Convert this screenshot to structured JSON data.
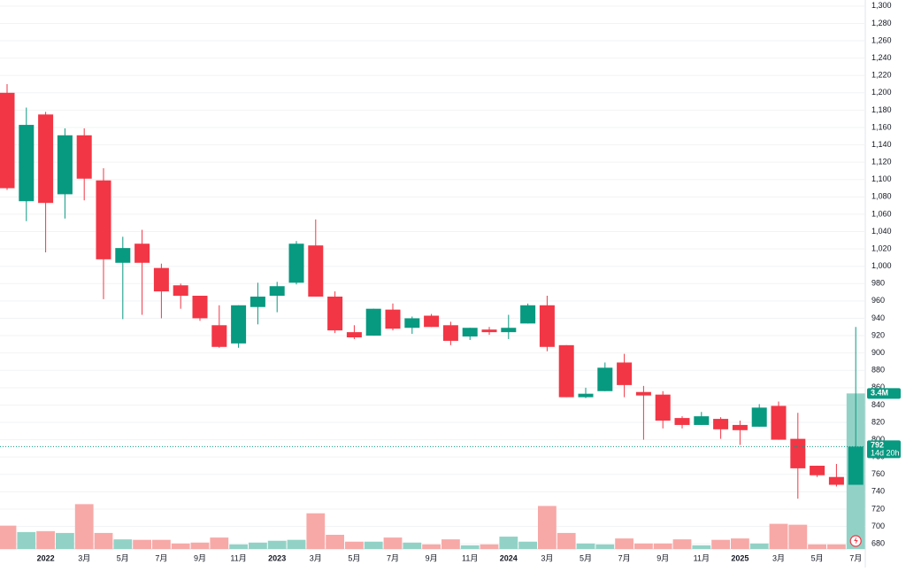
{
  "chart_data": {
    "type": "candlestick",
    "categories": [
      null,
      null,
      "2022",
      null,
      "3月",
      null,
      "5月",
      null,
      "7月",
      null,
      "9月",
      null,
      "11月",
      null,
      "2023",
      null,
      "3月",
      null,
      "5月",
      null,
      "7月",
      null,
      "9月",
      null,
      "11月",
      null,
      "2024",
      null,
      "3月",
      null,
      "5月",
      null,
      "7月",
      null,
      "9月",
      null,
      "11月",
      null,
      "2025",
      null,
      "3月",
      null,
      "5月",
      null,
      "7月"
    ],
    "open": [
      1200,
      1075,
      1175,
      1083,
      1151,
      1099,
      1004,
      1026,
      998,
      978,
      966,
      932,
      911,
      953,
      966,
      981,
      1024,
      965,
      924,
      920,
      950,
      929,
      943,
      932,
      919,
      927,
      924,
      934,
      955,
      909,
      849,
      856,
      889,
      855,
      852,
      825,
      817,
      824,
      817,
      815,
      839,
      801,
      770,
      757,
      748
    ],
    "high": [
      1210,
      1183,
      1178,
      1159,
      1159,
      1113,
      1034,
      1042,
      1003,
      980,
      966,
      955,
      955,
      981,
      982,
      1029,
      1054,
      971,
      932,
      951,
      957,
      942,
      945,
      936,
      929,
      930,
      944,
      957,
      966,
      909,
      860,
      889,
      899,
      862,
      856,
      827,
      832,
      826,
      822,
      841,
      844,
      831,
      770,
      772,
      930
    ],
    "low": [
      1088,
      1052,
      1016,
      1055,
      1076,
      962,
      939,
      944,
      940,
      951,
      937,
      906,
      906,
      933,
      947,
      979,
      965,
      923,
      916,
      920,
      926,
      922,
      930,
      909,
      915,
      921,
      916,
      934,
      902,
      849,
      848,
      856,
      849,
      800,
      813,
      813,
      817,
      801,
      794,
      815,
      800,
      732,
      757,
      746,
      748
    ],
    "close": [
      1090,
      1163,
      1073,
      1151,
      1101,
      1008,
      1021,
      1004,
      971,
      966,
      940,
      907,
      955,
      965,
      977,
      1026,
      965,
      926,
      918,
      951,
      928,
      940,
      930,
      914,
      929,
      924,
      929,
      955,
      907,
      849,
      853,
      883,
      863,
      851,
      822,
      817,
      827,
      812,
      811,
      837,
      800,
      767,
      759,
      748,
      792
    ],
    "volume": [
      0.51,
      0.37,
      0.39,
      0.35,
      0.98,
      0.35,
      0.21,
      0.2,
      0.2,
      0.12,
      0.14,
      0.25,
      0.1,
      0.14,
      0.18,
      0.2,
      0.78,
      0.31,
      0.16,
      0.16,
      0.25,
      0.14,
      0.1,
      0.21,
      0.08,
      0.1,
      0.27,
      0.16,
      0.94,
      0.35,
      0.12,
      0.1,
      0.23,
      0.12,
      0.12,
      0.21,
      0.08,
      0.2,
      0.23,
      0.12,
      0.55,
      0.53,
      0.1,
      0.1,
      3.4
    ],
    "volume_tag": "3.4M",
    "countdown": "14d 20h",
    "up_color": "#089981",
    "down_color": "#f23645",
    "up_volume_color": "#92d2c6",
    "down_volume_color": "#f7a9a7",
    "ylim": [
      674,
      1307
    ],
    "volume_ylim": [
      0,
      12
    ],
    "yticks": [
      680,
      700,
      720,
      740,
      760,
      780,
      800,
      820,
      840,
      860,
      880,
      900,
      920,
      940,
      960,
      980,
      {
        "value": 1000,
        "label": "1,000"
      },
      {
        "value": 1020,
        "label": "1,020"
      },
      {
        "value": 1040,
        "label": "1,040"
      },
      {
        "value": 1060,
        "label": "1,060"
      },
      {
        "value": 1080,
        "label": "1,080"
      },
      {
        "value": 1100,
        "label": "1,100"
      },
      {
        "value": 1120,
        "label": "1,120"
      },
      {
        "value": 1140,
        "label": "1,140"
      },
      {
        "value": 1160,
        "label": "1,160"
      },
      {
        "value": 1180,
        "label": "1,180"
      },
      {
        "value": 1200,
        "label": "1,200"
      },
      {
        "value": 1220,
        "label": "1,220"
      },
      {
        "value": 1240,
        "label": "1,240"
      },
      {
        "value": 1260,
        "label": "1,260"
      },
      {
        "value": 1280,
        "label": "1,280"
      },
      {
        "value": 1300,
        "label": "1,300"
      }
    ],
    "grid": true
  }
}
